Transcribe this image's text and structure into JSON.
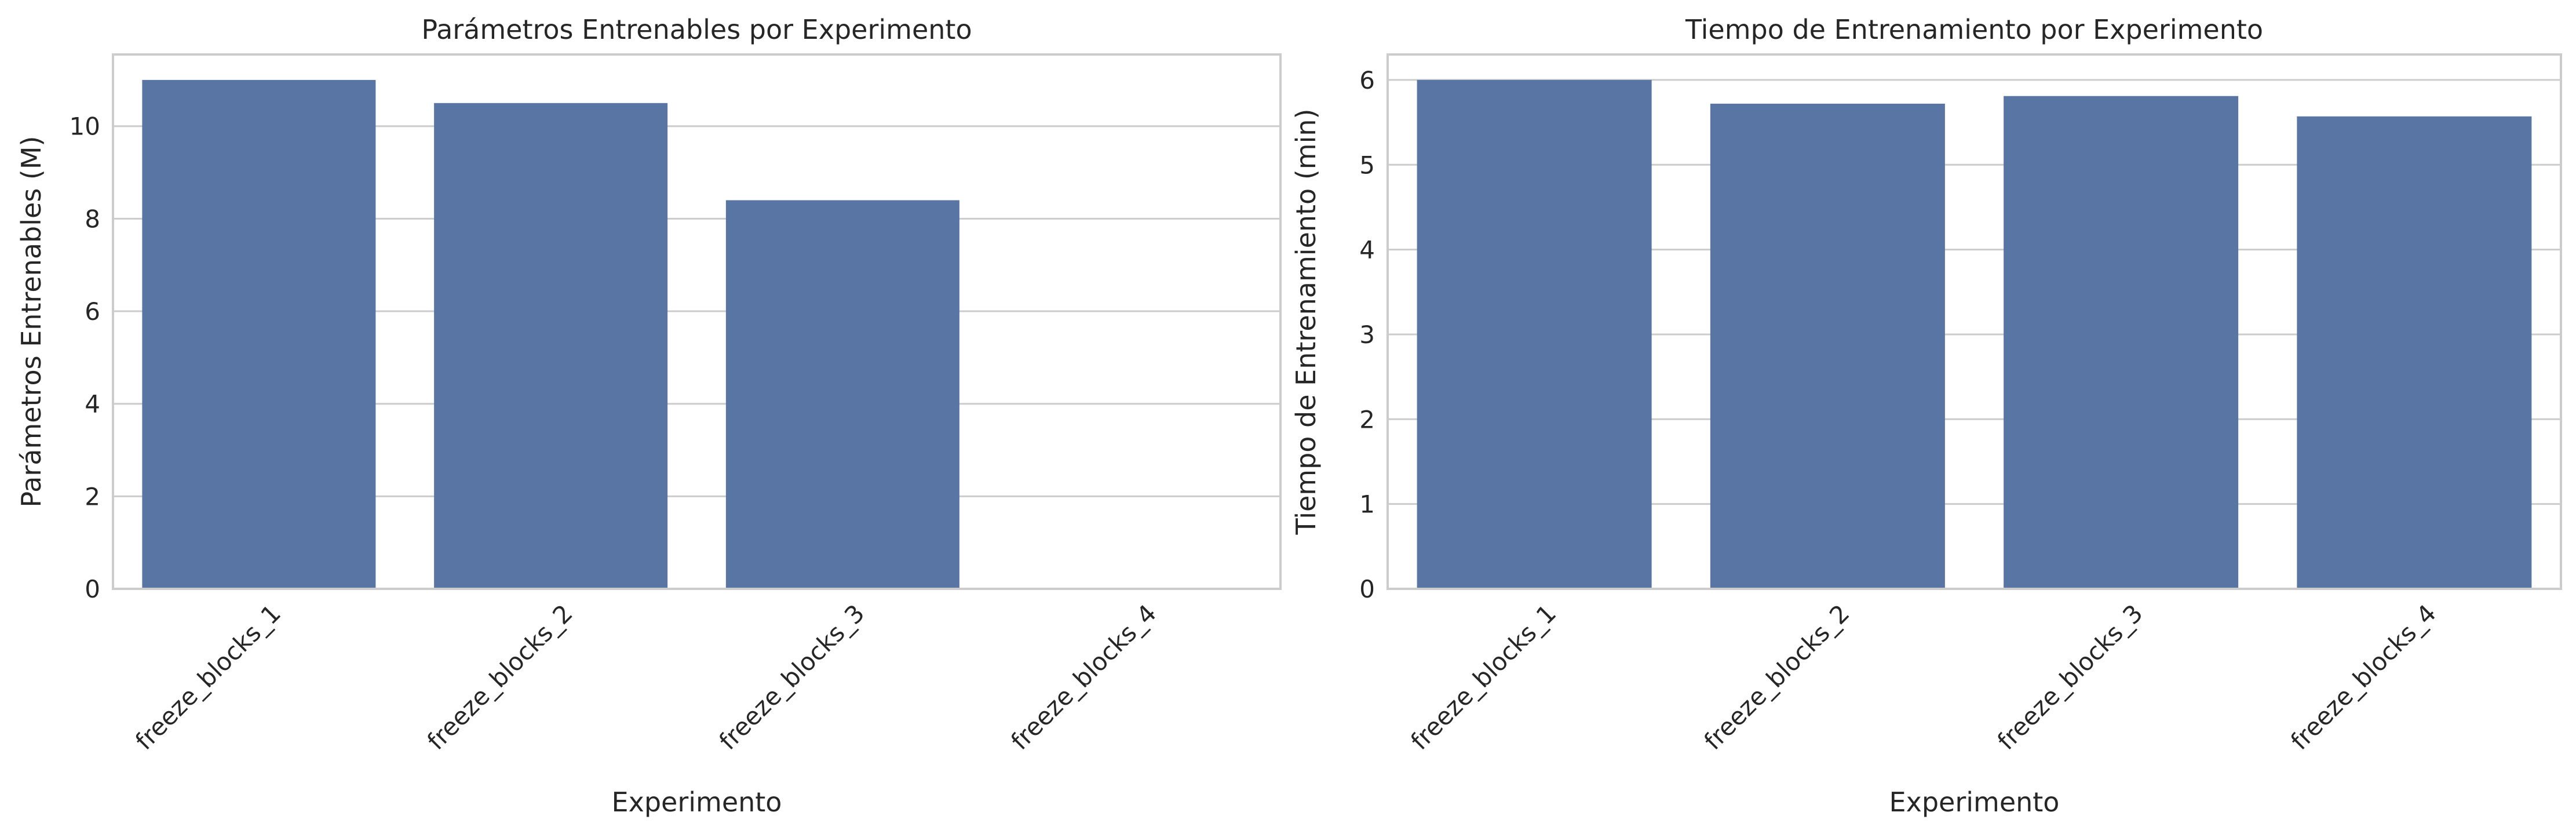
{
  "colors": {
    "bar": "#5975a4"
  },
  "chart_data": [
    {
      "type": "bar",
      "title": "Parámetros Entrenables por Experimento",
      "xlabel": "Experimento",
      "ylabel": "Parámetros Entrenables (M)",
      "categories": [
        "freeze_blocks_1",
        "freeze_blocks_2",
        "freeze_blocks_3",
        "freeze_blocks_4"
      ],
      "values": [
        11.0,
        10.5,
        8.4,
        0.0
      ],
      "ylim": [
        0,
        11.55
      ],
      "yticks": [
        0,
        2,
        4,
        6,
        8,
        10
      ],
      "grid": "horizontal"
    },
    {
      "type": "bar",
      "title": "Tiempo de Entrenamiento por Experimento",
      "xlabel": "Experimento",
      "ylabel": "Tiempo de Entrenamiento (min)",
      "categories": [
        "freeze_blocks_1",
        "freeze_blocks_2",
        "freeze_blocks_3",
        "freeze_blocks_4"
      ],
      "values": [
        6.0,
        5.72,
        5.81,
        5.57
      ],
      "ylim": [
        0,
        6.3
      ],
      "yticks": [
        0,
        1,
        2,
        3,
        4,
        5,
        6
      ],
      "grid": "horizontal"
    }
  ]
}
